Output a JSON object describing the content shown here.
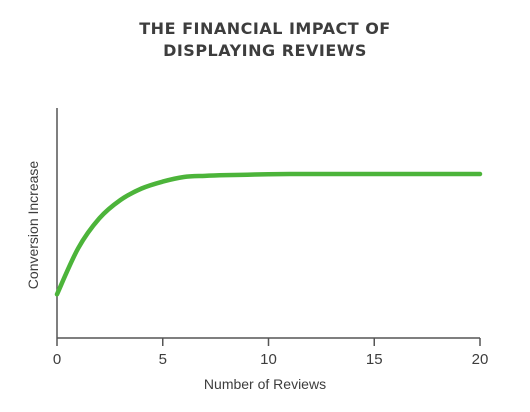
{
  "chart_data": {
    "type": "line",
    "title_lines": [
      "THE FINANCIAL IMPACT OF",
      "DISPLAYING REVIEWS"
    ],
    "xlabel": "Number of Reviews",
    "ylabel": "Conversion Increase",
    "xlim": [
      0,
      20
    ],
    "ylim": [
      0,
      1
    ],
    "xticks": [
      0,
      5,
      10,
      15,
      20
    ],
    "xtick_labels": [
      "0",
      "5",
      "10",
      "15",
      "20"
    ],
    "grid": false,
    "series": [
      {
        "color": "#4cb43a",
        "x": [
          0,
          1,
          2,
          3,
          4,
          5,
          6,
          7,
          8,
          9,
          10,
          11,
          12,
          13,
          14,
          15,
          16,
          17,
          18,
          19,
          20
        ],
        "y": [
          0.19,
          0.39,
          0.52,
          0.6,
          0.65,
          0.68,
          0.7,
          0.705,
          0.708,
          0.71,
          0.712,
          0.713,
          0.713,
          0.713,
          0.713,
          0.713,
          0.713,
          0.713,
          0.713,
          0.713,
          0.713
        ]
      }
    ]
  },
  "colors": {
    "line": "#4cb43a",
    "axis": "#555555",
    "text": "#3d3d3d"
  }
}
